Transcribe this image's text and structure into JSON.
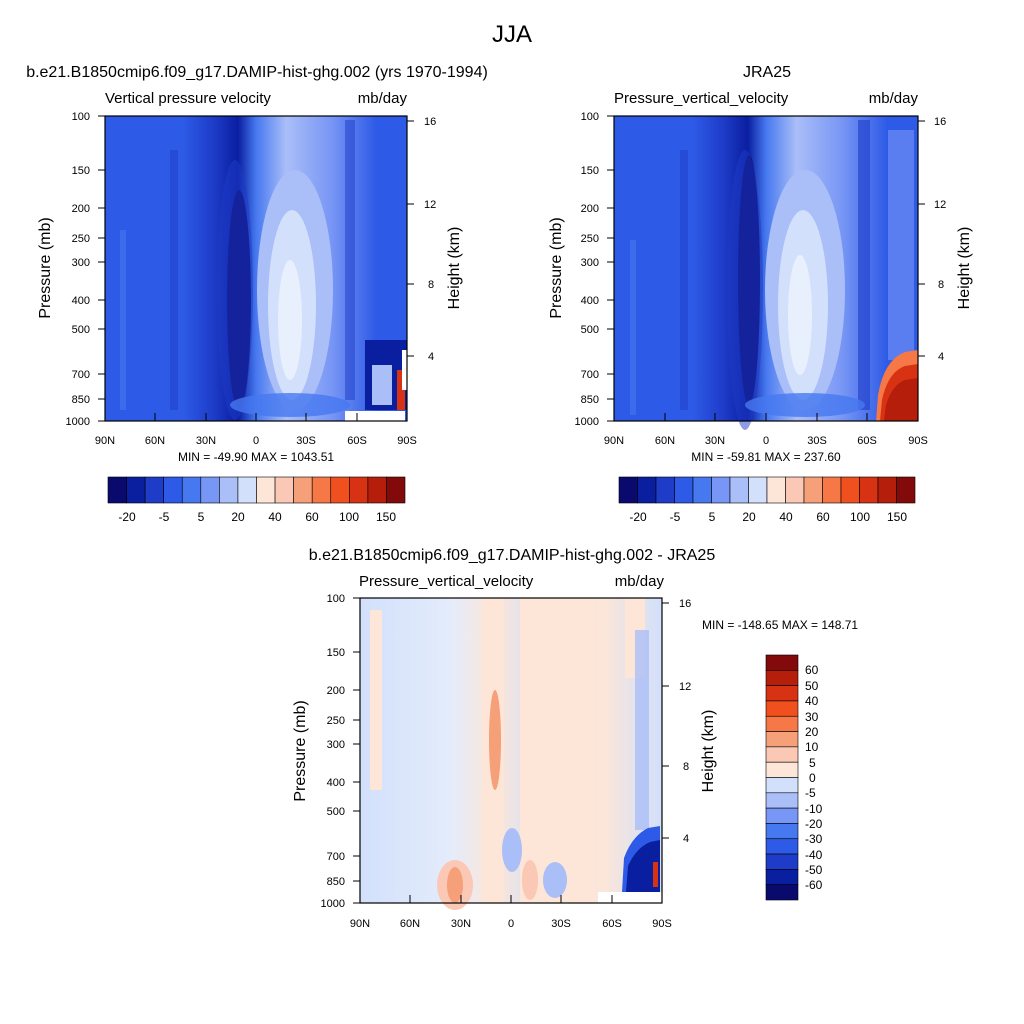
{
  "figure": {
    "title": "JJA"
  },
  "chart_data": [
    {
      "type": "heatmap",
      "id": "model",
      "title": "b.e21.B1850cmip6.f09_g17.DAMIP-hist-ghg.002 (yrs 1970-1994)",
      "variable": "Vertical pressure velocity",
      "units": "mb/day",
      "ylabel": "Pressure (mb)",
      "ylabel_right": "Height (km)",
      "x_ticks": [
        "90N",
        "60N",
        "30N",
        "0",
        "30S",
        "60S",
        "90S"
      ],
      "y_ticks": [
        "100",
        "150",
        "200",
        "250",
        "300",
        "400",
        "500",
        "700",
        "850",
        "1000"
      ],
      "y_ticks_right": [
        "16",
        "12",
        "8",
        "4"
      ],
      "stats": "MIN = -49.90  MAX = 1043.51",
      "colorbar_labels": [
        "-20",
        "-5",
        "5",
        "20",
        "40",
        "60",
        "100",
        "150"
      ],
      "colorbar_colors": [
        "#0a0a6e",
        "#0a1ea0",
        "#1e3cc8",
        "#2d5ae6",
        "#4678f0",
        "#7896f5",
        "#aabef8",
        "#d2e0fb",
        "#fde6d8",
        "#fac8b4",
        "#f5a078",
        "#f57846",
        "#f0501e",
        "#d73214",
        "#b41e0a",
        "#820a0a"
      ]
    },
    {
      "type": "heatmap",
      "id": "obs",
      "title": "JRA25",
      "variable": "Pressure_vertical_velocity",
      "units": "mb/day",
      "ylabel": "Pressure (mb)",
      "ylabel_right": "Height (km)",
      "x_ticks": [
        "90N",
        "60N",
        "30N",
        "0",
        "30S",
        "60S",
        "90S"
      ],
      "y_ticks": [
        "100",
        "150",
        "200",
        "250",
        "300",
        "400",
        "500",
        "700",
        "850",
        "1000"
      ],
      "y_ticks_right": [
        "16",
        "12",
        "8",
        "4"
      ],
      "stats": "MIN = -59.81  MAX = 237.60",
      "colorbar_labels": [
        "-20",
        "-5",
        "5",
        "20",
        "40",
        "60",
        "100",
        "150"
      ],
      "colorbar_colors": [
        "#0a0a6e",
        "#0a1ea0",
        "#1e3cc8",
        "#2d5ae6",
        "#4678f0",
        "#7896f5",
        "#aabef8",
        "#d2e0fb",
        "#fde6d8",
        "#fac8b4",
        "#f5a078",
        "#f57846",
        "#f0501e",
        "#d73214",
        "#b41e0a",
        "#820a0a"
      ]
    },
    {
      "type": "heatmap",
      "id": "diff",
      "title": "b.e21.B1850cmip6.f09_g17.DAMIP-hist-ghg.002 - JRA25",
      "variable": "Pressure_vertical_velocity",
      "units": "mb/day",
      "ylabel": "Pressure (mb)",
      "ylabel_right": "Height (km)",
      "x_ticks": [
        "90N",
        "60N",
        "30N",
        "0",
        "30S",
        "60S",
        "90S"
      ],
      "y_ticks": [
        "100",
        "150",
        "200",
        "250",
        "300",
        "400",
        "500",
        "700",
        "850",
        "1000"
      ],
      "y_ticks_right": [
        "16",
        "12",
        "8",
        "4"
      ],
      "stats": "MIN = -148.65  MAX = 148.71",
      "colorbar_labels": [
        "60",
        "50",
        "40",
        "30",
        "20",
        "10",
        "5",
        "0",
        "-5",
        "-10",
        "-20",
        "-30",
        "-40",
        "-50",
        "-60"
      ],
      "colorbar_colors": [
        "#820a0a",
        "#b41e0a",
        "#d73214",
        "#f0501e",
        "#f57846",
        "#f5a078",
        "#fac8b4",
        "#fde6d8",
        "#d2e0fb",
        "#aabef8",
        "#7896f5",
        "#4678f0",
        "#2d5ae6",
        "#1e3cc8",
        "#0a1ea0",
        "#0a0a6e"
      ]
    }
  ]
}
